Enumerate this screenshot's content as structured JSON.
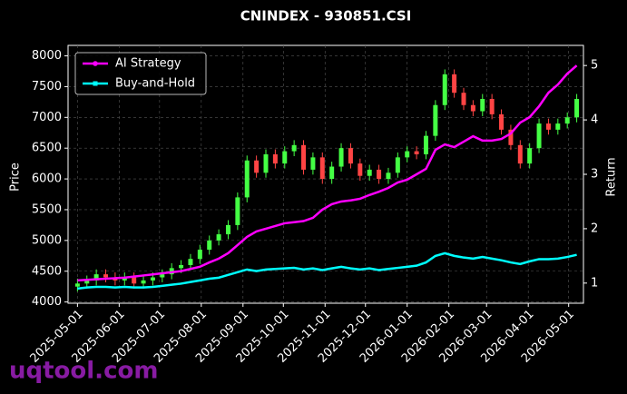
{
  "chart_data": {
    "type": "candlestick",
    "title": "CNINDEX - 930851.CSI",
    "ylabel": "Price",
    "y2label": "Return",
    "watermark": "uqtool.com",
    "up_color": "#44ff44",
    "down_color": "#ff4444",
    "grid": true,
    "legend": "upper left",
    "x": [
      "2025-05-01",
      "2025-05-08",
      "2025-05-15",
      "2025-05-22",
      "2025-05-29",
      "2025-06-05",
      "2025-06-12",
      "2025-06-19",
      "2025-06-26",
      "2025-07-03",
      "2025-07-10",
      "2025-07-17",
      "2025-07-24",
      "2025-07-31",
      "2025-08-07",
      "2025-08-14",
      "2025-08-21",
      "2025-08-28",
      "2025-09-04",
      "2025-09-11",
      "2025-09-18",
      "2025-09-25",
      "2025-10-02",
      "2025-10-09",
      "2025-10-16",
      "2025-10-23",
      "2025-10-30",
      "2025-11-06",
      "2025-11-13",
      "2025-11-20",
      "2025-11-27",
      "2025-12-04",
      "2025-12-11",
      "2025-12-18",
      "2025-12-25",
      "2026-01-01",
      "2026-01-08",
      "2026-01-15",
      "2026-01-22",
      "2026-01-29",
      "2026-02-05",
      "2026-02-12",
      "2026-02-19",
      "2026-02-26",
      "2026-03-05",
      "2026-03-12",
      "2026-03-19",
      "2026-03-26",
      "2026-04-02",
      "2026-04-09",
      "2026-04-16",
      "2026-04-23",
      "2026-04-30",
      "2026-05-07"
    ],
    "open": [
      4250,
      4300,
      4350,
      4450,
      4400,
      4350,
      4400,
      4300,
      4350,
      4400,
      4450,
      4550,
      4600,
      4700,
      4850,
      5000,
      5100,
      5250,
      5700,
      6300,
      6100,
      6400,
      6250,
      6450,
      6550,
      6150,
      6350,
      6000,
      6200,
      6500,
      6250,
      6050,
      6150,
      6000,
      6100,
      6350,
      6450,
      6400,
      6700,
      7200,
      7700,
      7400,
      7200,
      7100,
      7300,
      7050,
      6800,
      6550,
      6250,
      6500,
      6900,
      6800,
      6900,
      7000
    ],
    "high": [
      4380,
      4430,
      4530,
      4530,
      4480,
      4480,
      4480,
      4430,
      4480,
      4530,
      4630,
      4680,
      4780,
      4930,
      5080,
      5180,
      5330,
      5780,
      6380,
      6380,
      6480,
      6480,
      6530,
      6630,
      6630,
      6430,
      6430,
      6280,
      6580,
      6580,
      6330,
      6230,
      6230,
      6180,
      6430,
      6530,
      6530,
      6780,
      7280,
      7780,
      7780,
      7480,
      7280,
      7380,
      7380,
      7130,
      6880,
      6630,
      6580,
      6980,
      6980,
      6980,
      7080,
      7380
    ],
    "low": [
      4170,
      4220,
      4270,
      4320,
      4270,
      4270,
      4220,
      4220,
      4270,
      4320,
      4370,
      4470,
      4520,
      4620,
      4770,
      4920,
      5020,
      5170,
      5620,
      6020,
      6020,
      6170,
      6170,
      6370,
      6070,
      6070,
      5920,
      5920,
      6120,
      6170,
      5970,
      5970,
      5920,
      5920,
      6020,
      6270,
      6320,
      6320,
      6620,
      7120,
      7320,
      7120,
      7020,
      7020,
      6970,
      6720,
      6470,
      6170,
      6170,
      6420,
      6720,
      6720,
      6820,
      6920
    ],
    "close": [
      4300,
      4350,
      4450,
      4400,
      4350,
      4400,
      4300,
      4350,
      4400,
      4450,
      4550,
      4600,
      4700,
      4850,
      5000,
      5100,
      5250,
      5700,
      6300,
      6100,
      6400,
      6250,
      6450,
      6550,
      6150,
      6350,
      6000,
      6200,
      6500,
      6250,
      6050,
      6150,
      6000,
      6100,
      6350,
      6450,
      6400,
      6700,
      7200,
      7700,
      7400,
      7200,
      7100,
      7300,
      7050,
      6800,
      6550,
      6250,
      6500,
      6900,
      6800,
      6900,
      7000,
      7300
    ],
    "series": [
      {
        "name": "AI Strategy",
        "color": "#ff00ff",
        "axis": "y2",
        "values": [
          1.05,
          1.06,
          1.07,
          1.08,
          1.09,
          1.1,
          1.12,
          1.14,
          1.16,
          1.18,
          1.2,
          1.22,
          1.26,
          1.3,
          1.38,
          1.45,
          1.55,
          1.7,
          1.85,
          1.95,
          2.0,
          2.05,
          2.1,
          2.12,
          2.14,
          2.2,
          2.35,
          2.45,
          2.5,
          2.52,
          2.55,
          2.62,
          2.68,
          2.75,
          2.85,
          2.9,
          3.0,
          3.1,
          3.45,
          3.55,
          3.5,
          3.6,
          3.7,
          3.62,
          3.62,
          3.65,
          3.75,
          3.95,
          4.05,
          4.25,
          4.5,
          4.65,
          4.85,
          5.0
        ]
      },
      {
        "name": "Buy-and-Hold",
        "color": "#00ffff",
        "axis": "y2",
        "values": [
          0.9,
          0.92,
          0.93,
          0.93,
          0.92,
          0.93,
          0.92,
          0.92,
          0.93,
          0.95,
          0.97,
          0.99,
          1.02,
          1.05,
          1.08,
          1.1,
          1.15,
          1.2,
          1.25,
          1.22,
          1.25,
          1.26,
          1.27,
          1.28,
          1.25,
          1.27,
          1.24,
          1.27,
          1.3,
          1.27,
          1.25,
          1.27,
          1.24,
          1.26,
          1.28,
          1.3,
          1.32,
          1.38,
          1.5,
          1.55,
          1.5,
          1.47,
          1.45,
          1.48,
          1.45,
          1.42,
          1.38,
          1.35,
          1.4,
          1.44,
          1.44,
          1.45,
          1.48,
          1.52
        ]
      }
    ],
    "xlim": [
      "2025-04-24",
      "2026-05-12"
    ],
    "xticks": [
      "2025-05-01",
      "2025-06-01",
      "2025-07-01",
      "2025-08-01",
      "2025-09-01",
      "2025-10-01",
      "2025-11-01",
      "2025-12-01",
      "2026-01-01",
      "2026-02-01",
      "2026-03-01",
      "2026-04-01",
      "2026-05-01"
    ],
    "ylim": [
      3980,
      8170
    ],
    "yticks": [
      4000,
      4500,
      5000,
      5500,
      6000,
      6500,
      7000,
      7500,
      8000
    ],
    "y2lim": [
      0.63,
      5.37
    ],
    "y2ticks": [
      1,
      2,
      3,
      4,
      5
    ]
  }
}
